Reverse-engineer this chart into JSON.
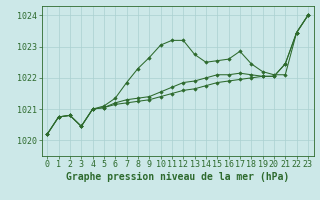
{
  "background_color": "#cce8e8",
  "grid_color": "#aad0d0",
  "line_color": "#2d6a2d",
  "marker_color": "#2d6a2d",
  "xlabel": "Graphe pression niveau de la mer (hPa)",
  "xlabel_fontsize": 7,
  "tick_fontsize": 6,
  "xlim": [
    -0.5,
    23.5
  ],
  "ylim": [
    1019.5,
    1024.3
  ],
  "yticks": [
    1020,
    1021,
    1022,
    1023,
    1024
  ],
  "xticks": [
    0,
    1,
    2,
    3,
    4,
    5,
    6,
    7,
    8,
    9,
    10,
    11,
    12,
    13,
    14,
    15,
    16,
    17,
    18,
    19,
    20,
    21,
    22,
    23
  ],
  "series": [
    {
      "x": [
        0,
        1,
        2,
        3,
        4,
        5,
        6,
        7,
        8,
        9,
        10,
        11,
        12,
        13,
        14,
        15,
        16,
        17,
        18,
        19,
        20,
        21,
        22,
        23
      ],
      "y": [
        1020.2,
        1020.75,
        1020.8,
        1020.45,
        1021.0,
        1021.1,
        1021.35,
        1021.85,
        1022.3,
        1022.65,
        1023.05,
        1023.2,
        1023.2,
        1022.75,
        1022.5,
        1022.55,
        1022.6,
        1022.85,
        1022.45,
        1022.2,
        1022.1,
        1022.1,
        1023.45,
        1024.0
      ]
    },
    {
      "x": [
        0,
        1,
        2,
        3,
        4,
        5,
        6,
        7,
        8,
        9,
        10,
        11,
        12,
        13,
        14,
        15,
        16,
        17,
        18,
        19,
        20,
        21,
        22,
        23
      ],
      "y": [
        1020.2,
        1020.75,
        1020.8,
        1020.45,
        1021.0,
        1021.05,
        1021.2,
        1021.3,
        1021.35,
        1021.4,
        1021.55,
        1021.7,
        1021.85,
        1021.9,
        1022.0,
        1022.1,
        1022.1,
        1022.15,
        1022.1,
        1022.05,
        1022.05,
        1022.45,
        1023.45,
        1024.0
      ]
    },
    {
      "x": [
        0,
        1,
        2,
        3,
        4,
        5,
        6,
        7,
        8,
        9,
        10,
        11,
        12,
        13,
        14,
        15,
        16,
        17,
        18,
        19,
        20,
        21,
        22,
        23
      ],
      "y": [
        1020.2,
        1020.75,
        1020.8,
        1020.45,
        1021.0,
        1021.05,
        1021.15,
        1021.2,
        1021.25,
        1021.3,
        1021.4,
        1021.5,
        1021.6,
        1021.65,
        1021.75,
        1021.85,
        1021.9,
        1021.95,
        1022.0,
        1022.05,
        1022.05,
        1022.45,
        1023.45,
        1024.0
      ]
    }
  ]
}
